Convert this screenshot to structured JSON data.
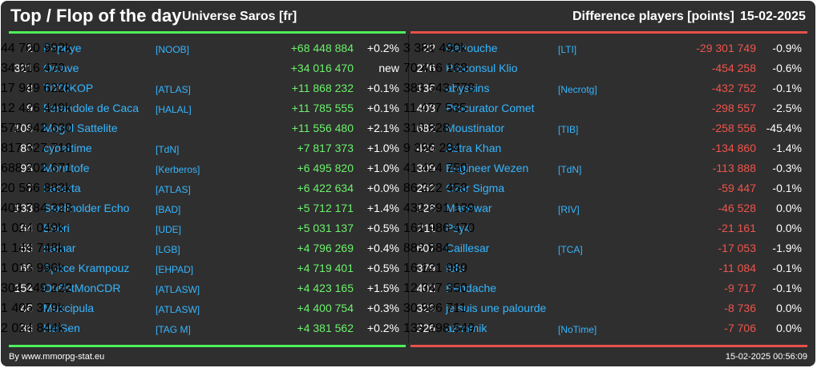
{
  "header": {
    "title": "Top / Flop of the day",
    "universe": "Universe Saros [fr]",
    "metric": "Difference players [points]",
    "date": "15-02-2025"
  },
  "colors": {
    "top": "#4cf05a",
    "flop": "#e8504a",
    "name": "#35b6ff",
    "background": "#2f2f2f"
  },
  "top": [
    {
      "rank": "2",
      "name": "Popeye",
      "alliance": "[NOOB]",
      "points": "44 700 992k",
      "diff": "+68 448 884",
      "pct": "+0.2%"
    },
    {
      "rank": "321",
      "name": "Octave",
      "alliance": "",
      "points": "34 016 470",
      "diff": "+34 016 470",
      "pct": "new"
    },
    {
      "rank": "8",
      "name": "T0T0KOP",
      "alliance": "[ATLAS]",
      "points": "17 949 622k",
      "diff": "+11 868 232",
      "pct": "+0.1%"
    },
    {
      "rank": "9",
      "name": "Farandole de Caca",
      "alliance": "[HALAL]",
      "points": "12 426 449k",
      "diff": "+11 785 555",
      "pct": "+0.1%"
    },
    {
      "rank": "108",
      "name": "Mogul Sattelite",
      "alliance": "",
      "points": "572 942 630",
      "diff": "+11 556 480",
      "pct": "+2.1%"
    },
    {
      "rank": "80",
      "name": "cybertime",
      "alliance": "[TdN]",
      "points": "817 827 718",
      "diff": "+7 817 373",
      "pct": "+1.0%"
    },
    {
      "rank": "93",
      "name": "Montitofe",
      "alliance": "[Kerberos]",
      "points": "688 202 671",
      "diff": "+6 495 820",
      "pct": "+1.0%"
    },
    {
      "rank": "7",
      "name": "Lacerta",
      "alliance": "[ATLAS]",
      "points": "20 586 883k",
      "diff": "+6 422 634",
      "pct": "+0.0%"
    },
    {
      "rank": "133",
      "name": "Stadtholder Echo",
      "alliance": "[BAD]",
      "points": "403 784 328",
      "diff": "+5 712 171",
      "pct": "+1.4%"
    },
    {
      "rank": "64",
      "name": "Ehori",
      "alliance": "[UDE]",
      "points": "1 024 049k",
      "diff": "+5 031 137",
      "pct": "+0.5%"
    },
    {
      "rank": "55",
      "name": "narnar",
      "alliance": "[LGB]",
      "points": "1 144 748k",
      "diff": "+4 796 269",
      "pct": "+0.4%"
    },
    {
      "rank": "65",
      "name": "Space Krampouz",
      "alliance": "[EHPAD]",
      "points": "1 013 996k",
      "diff": "+4 719 401",
      "pct": "+0.5%"
    },
    {
      "rank": "154",
      "name": "OuEstMonCDR",
      "alliance": "[ATLASW]",
      "points": "304 249 222",
      "diff": "+4 423 165",
      "pct": "+1.5%"
    },
    {
      "rank": "46",
      "name": "Muscipula",
      "alliance": "[ATLASW]",
      "points": "1 405 379k",
      "diff": "+4 400 754",
      "pct": "+0.3%"
    },
    {
      "rank": "36",
      "name": "HeiSen",
      "alliance": "[TAG M]",
      "points": "2 024 844k",
      "diff": "+4 381 562",
      "pct": "+0.2%"
    }
  ],
  "flop": [
    {
      "rank": "22",
      "name": "Cartouche",
      "alliance": "[LTI]",
      "points": "3 381 490k",
      "diff": "-29 301 749",
      "pct": "-0.9%"
    },
    {
      "rank": "276",
      "name": "Proconsul Klio",
      "alliance": "",
      "points": "70 416 168",
      "diff": "-454 258",
      "pct": "-0.6%"
    },
    {
      "rank": "136",
      "name": "abyssins",
      "alliance": "[Necrotg]",
      "points": "383 543 778",
      "diff": "-432 752",
      "pct": "-0.1%"
    },
    {
      "rank": "408",
      "name": "Procurator Comet",
      "alliance": "",
      "points": "11 477 535",
      "diff": "-298 557",
      "pct": "-2.5%"
    },
    {
      "rank": "682",
      "name": "Moustinator",
      "alliance": "[TIB]",
      "points": "310 828",
      "diff": "-258 556",
      "pct": "-45.4%"
    },
    {
      "rank": "424",
      "name": "Astra Khan",
      "alliance": "",
      "points": "9 396 284",
      "diff": "-134 860",
      "pct": "-1.4%"
    },
    {
      "rank": "309",
      "name": "Engineer Wezen",
      "alliance": "[TdN]",
      "points": "41 424 750",
      "diff": "-113 888",
      "pct": "-0.3%"
    },
    {
      "rank": "262",
      "name": "Czar Sigma",
      "alliance": "",
      "points": "86 222 458",
      "diff": "-59 447",
      "pct": "-0.1%"
    },
    {
      "rank": "128",
      "name": "Manowar",
      "alliance": "[RIV]",
      "points": "432 691 139",
      "diff": "-46 528",
      "pct": "0.0%"
    },
    {
      "rank": "211",
      "name": "Psy4",
      "alliance": "",
      "points": "161 986 470",
      "diff": "-21 161",
      "pct": "0.0%"
    },
    {
      "rank": "607",
      "name": "Caillesar",
      "alliance": "[TCA]",
      "points": "882 884",
      "diff": "-17 053",
      "pct": "-1.9%"
    },
    {
      "rank": "379",
      "name": "fufu",
      "alliance": "",
      "points": "16 121 989",
      "diff": "-11 084",
      "pct": "-0.1%"
    },
    {
      "rank": "402",
      "name": "Bendache",
      "alliance": "",
      "points": "12 347 350",
      "diff": "-9 717",
      "pct": "-0.1%"
    },
    {
      "rank": "329",
      "name": "je suis une palourde",
      "alliance": "",
      "points": "30 996 711",
      "diff": "-8 736",
      "pct": "0.0%"
    },
    {
      "rank": "226",
      "name": "azmimik",
      "alliance": "[NoTime]",
      "points": "133 298 549",
      "diff": "-7 706",
      "pct": "0.0%"
    }
  ],
  "footer": {
    "credit": "By www.mmorpg-stat.eu",
    "timestamp": "15-02-2025 00:56:09"
  }
}
